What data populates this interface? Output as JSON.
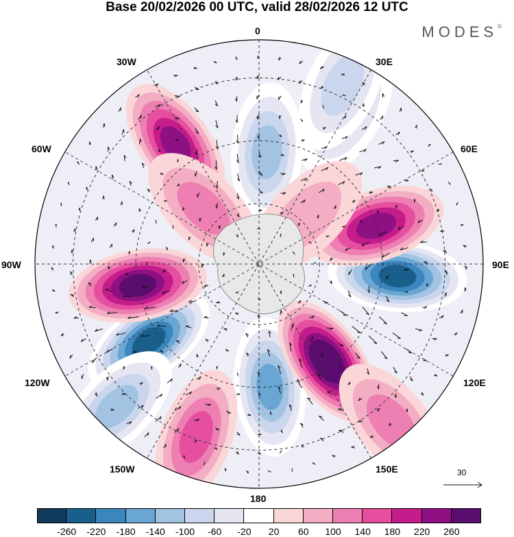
{
  "title": "Base 20/02/2026 00 UTC, valid 28/02/2026 12 UTC",
  "brand": "MODES",
  "brand_mark": "©",
  "longitude_labels": {
    "top": "0",
    "bottom": "180",
    "left": "90W",
    "right": "90E",
    "upper_left_30": "30W",
    "upper_right_30": "30E",
    "upper_left_60": "60W",
    "upper_right_60": "60E",
    "lower_left_120": "120W",
    "lower_right_120": "120E",
    "lower_left_150": "150W",
    "lower_right_150": "150E"
  },
  "vector_reference": {
    "value": "30"
  },
  "colorbar": {
    "colors": [
      "#0f3a5c",
      "#1a5f8c",
      "#3a86bd",
      "#6aa6d3",
      "#a3c3e3",
      "#c9d6ed",
      "#e6e6f3",
      "#ffffff",
      "#fad6d9",
      "#f4aec4",
      "#ee7fb2",
      "#e64f9f",
      "#c51c8c",
      "#8f1082",
      "#5b0d6f"
    ],
    "ticks": [
      "-260",
      "-220",
      "-180",
      "-140",
      "-100",
      "-60",
      "-20",
      "20",
      "60",
      "100",
      "140",
      "180",
      "220",
      "260"
    ]
  },
  "anomaly_centers": [
    {
      "lon": -125,
      "colat": 0.6,
      "value": -230
    },
    {
      "lon": 95,
      "colat": 0.62,
      "value": -250
    },
    {
      "lon": 4,
      "colat": 0.5,
      "value": -130
    },
    {
      "lon": 175,
      "colat": 0.55,
      "value": -150
    },
    {
      "lon": 30,
      "colat": 0.78,
      "value": -90
    },
    {
      "lon": -135,
      "colat": 0.9,
      "value": -100
    },
    {
      "lon": 25,
      "colat": 0.88,
      "value": -70
    },
    {
      "lon": -35,
      "colat": 0.65,
      "value": 210
    },
    {
      "lon": -100,
      "colat": 0.55,
      "value": 230
    },
    {
      "lon": 145,
      "colat": 0.53,
      "value": 280
    },
    {
      "lon": 72,
      "colat": 0.55,
      "value": 190
    },
    {
      "lon": -160,
      "colat": 0.82,
      "value": 110
    },
    {
      "lon": -45,
      "colat": 0.35,
      "value": 60
    },
    {
      "lon": 45,
      "colat": 0.3,
      "value": 40
    },
    {
      "lon": 140,
      "colat": 0.92,
      "value": 60
    }
  ]
}
